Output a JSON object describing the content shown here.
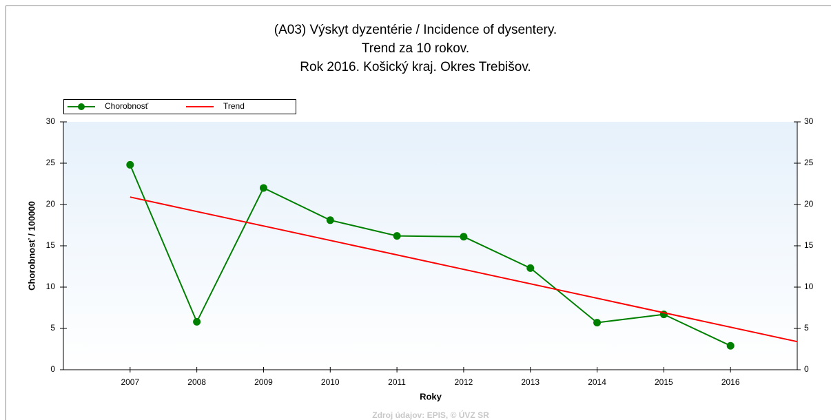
{
  "chart_data": {
    "type": "line",
    "title": [
      "(A03) Výskyt dyzentérie / Incidence of dysentery.",
      "Trend za 10 rokov.",
      "Rok 2016. Košický kraj. Okres Trebišov."
    ],
    "x_label": "Roky",
    "y_label": "Chorobnosť / 100000",
    "source": "Zdroj údajov: EPIS, © ÚVZ SR",
    "series": [
      {
        "name": "Chorobnosť",
        "color": "#008000",
        "markers": true,
        "x": [
          2007,
          2008,
          2009,
          2010,
          2011,
          2012,
          2013,
          2014,
          2015,
          2016
        ],
        "values": [
          24.8,
          5.8,
          22.0,
          18.1,
          16.2,
          16.1,
          12.3,
          5.7,
          6.7,
          2.9
        ]
      },
      {
        "name": "Trend",
        "color": "#ff0000",
        "markers": false,
        "x": [
          2007,
          2017
        ],
        "values": [
          20.9,
          3.4
        ]
      }
    ],
    "xlim": [
      2006,
      2017
    ],
    "xticks": [
      2007,
      2008,
      2009,
      2010,
      2011,
      2012,
      2013,
      2014,
      2015,
      2016
    ],
    "ylim": [
      0,
      30
    ],
    "yticks": [
      0,
      5,
      10,
      15,
      20,
      25,
      30
    ],
    "legend": "top-left"
  }
}
